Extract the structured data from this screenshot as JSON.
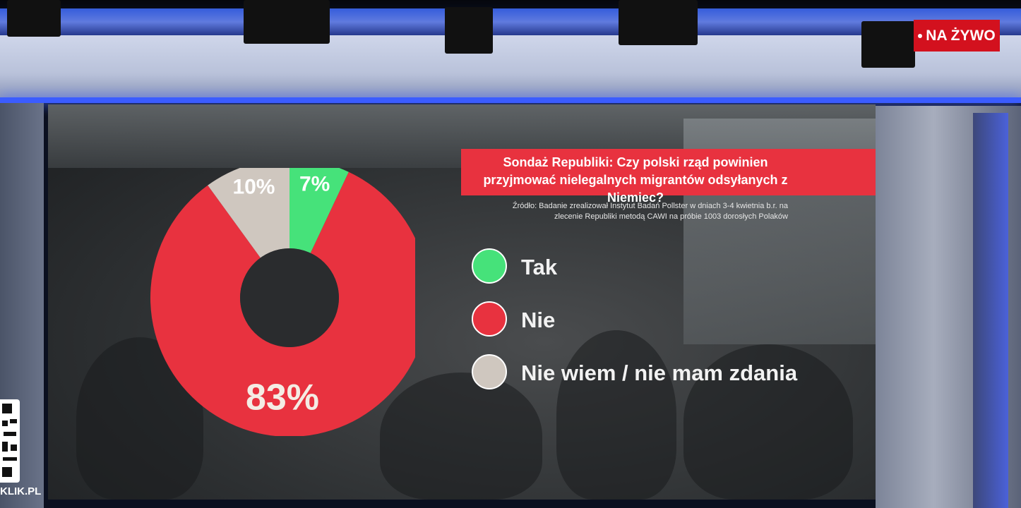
{
  "badge": {
    "live_label": "NA ŻYWO"
  },
  "footer": {
    "site_label": "KLIK.PL"
  },
  "colors": {
    "tak": "#46e27a",
    "nie": "#e8323f",
    "nie_wiem": "#cfc7bf",
    "header": "#e8323f"
  },
  "chart_data": {
    "type": "pie",
    "donut": true,
    "title": "Sondaż Republiki: Czy polski rząd powinien przyjmować nielegalnych migrantów odsyłanych z Niemiec?",
    "source": "Źródło: Badanie zrealizował Instytut Badań Pollster w dniach 3-4  kwietnia b.r. na zlecenie Republiki metodą CAWI na próbie 1003 dorosłych Polaków",
    "legend_position": "right",
    "slices": [
      {
        "label": "Tak",
        "value": 7,
        "value_label": "7%",
        "color": "#46e27a"
      },
      {
        "label": "Nie",
        "value": 83,
        "value_label": "83%",
        "color": "#e8323f"
      },
      {
        "label": "Nie wiem / nie mam zdania",
        "value": 10,
        "value_label": "10%",
        "color": "#cfc7bf"
      }
    ]
  }
}
